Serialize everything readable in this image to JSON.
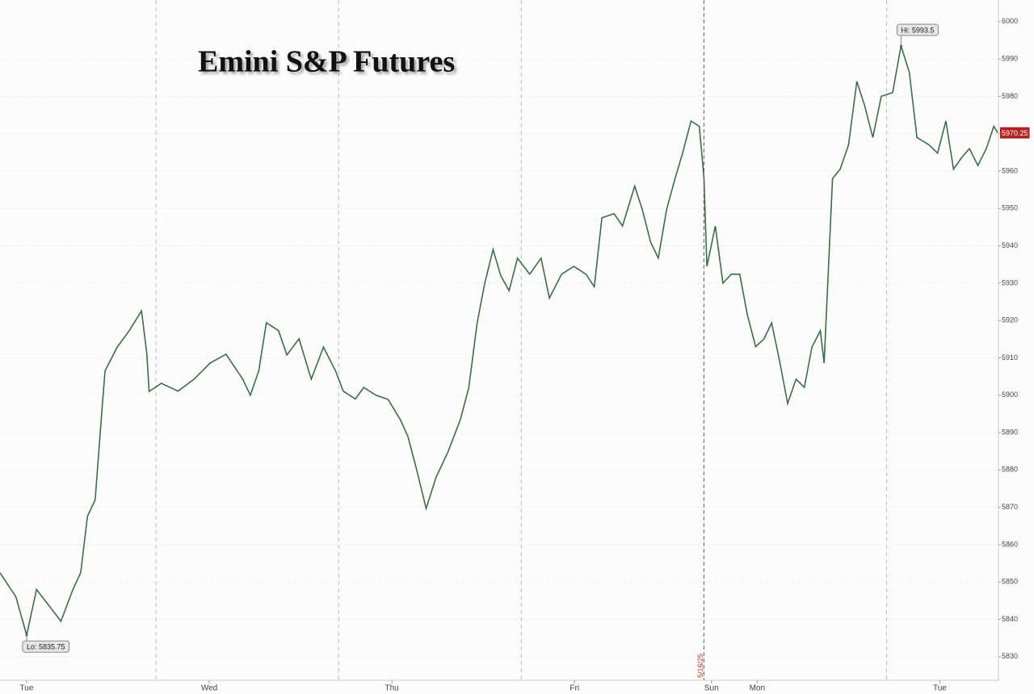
{
  "chart_data": {
    "type": "line",
    "title": "Emini S&P Futures",
    "x": [
      -3.5,
      -1.4,
      0,
      1.3,
      2.9,
      4.5,
      6.1,
      7.1,
      8.0,
      9.0,
      9.8,
      10.3,
      11.9,
      13.5,
      15.1,
      15.8,
      16.1,
      17.7,
      19.9,
      22.0,
      24.1,
      26.2,
      28.4,
      29.4,
      30.5,
      31.5,
      33.1,
      34.2,
      35.8,
      37.4,
      39.0,
      40.6,
      41.6,
      43.2,
      44.3,
      45.9,
      47.5,
      49.1,
      50.1,
      51.2,
      52.5,
      53.8,
      55.4,
      57.0,
      58.1,
      59.2,
      60.2,
      61.3,
      62.3,
      63.4,
      64.5,
      66.1,
      67.6,
      68.7,
      70.3,
      71.9,
      73.5,
      74.6,
      75.6,
      77.2,
      78.3,
      79.9,
      80.9,
      82.0,
      83.0,
      84.1,
      85.2,
      86.2,
      87.3,
      88.4,
      89.0,
      89.4,
      90.5,
      91.5,
      92.6,
      93.7,
      94.7,
      95.8,
      96.9,
      97.9,
      99.0,
      100.0,
      101.1,
      102.2,
      103.2,
      104.3,
      104.8,
      105.9,
      106.9,
      108.0,
      109.1,
      110.1,
      111.2,
      112.3,
      113.8,
      114.9,
      116.0,
      117.0,
      118.6,
      119.7,
      120.8,
      121.8,
      122.9,
      123.9,
      125.0,
      126.1,
      127.1,
      127.6
    ],
    "series": [
      {
        "color": "#3b6e46",
        "values": [
          5852.5,
          5846,
          5835.75,
          5848,
          5843.8,
          5839.5,
          5848.1,
          5852.5,
          5867.6,
          5872,
          5893.5,
          5906.5,
          5912.9,
          5917.3,
          5922.6,
          5911,
          5901,
          5903.2,
          5901.1,
          5904.3,
          5908.6,
          5911,
          5904.3,
          5900,
          5906.5,
          5919.4,
          5917.3,
          5910.8,
          5915.1,
          5904.3,
          5912.9,
          5906.5,
          5901.1,
          5899,
          5902.1,
          5900,
          5898.9,
          5893.5,
          5889,
          5880.5,
          5869.7,
          5878,
          5885,
          5893.5,
          5902,
          5919.4,
          5930,
          5939,
          5932,
          5928,
          5936.7,
          5932.4,
          5936.7,
          5926,
          5932.4,
          5934.5,
          5932.4,
          5929,
          5947.5,
          5948.6,
          5945.3,
          5956,
          5949.7,
          5941,
          5936.7,
          5949.7,
          5958,
          5964.8,
          5973.4,
          5972,
          5958.3,
          5934.5,
          5945.3,
          5930,
          5932.4,
          5932.4,
          5921.6,
          5913,
          5915.1,
          5919.4,
          5908.6,
          5897.8,
          5904.3,
          5902.1,
          5912.9,
          5917.3,
          5908.6,
          5958,
          5960.5,
          5967,
          5984,
          5977.7,
          5969,
          5980,
          5981,
          5993.5,
          5986.4,
          5969,
          5967,
          5964.8,
          5973.4,
          5960.5,
          5963.7,
          5966,
          5961.5,
          5966,
          5972,
          5970.25
        ]
      }
    ],
    "xlim": [
      -3.5,
      127.6
    ],
    "xticks": [
      {
        "value": 0,
        "label": "Tue"
      },
      {
        "value": 24,
        "label": "Wed"
      },
      {
        "value": 48,
        "label": "Thu"
      },
      {
        "value": 72,
        "label": "Fri"
      },
      {
        "value": 90,
        "label": "Sun"
      },
      {
        "value": 96,
        "label": "Mon"
      },
      {
        "value": 120,
        "label": "Tue"
      }
    ],
    "xgrid": [
      17,
      41,
      65,
      113
    ],
    "ylim": [
      5823.7,
      6005.8
    ],
    "yticks": [
      5830,
      5840,
      5850,
      5860,
      5870,
      5880,
      5890,
      5900,
      5910,
      5920,
      5930,
      5940,
      5950,
      5960,
      5970,
      5980,
      5990,
      6000
    ],
    "grid": true,
    "marker": {
      "x": 89.0,
      "label": "5/16/25",
      "color": "#c0392b"
    },
    "annotations": [
      {
        "x": 114.9,
        "value": 5993.5,
        "label": "Hi: 5993.5",
        "side": "top"
      },
      {
        "x": 0,
        "value": 5835.75,
        "label": "Lo: 5835.75",
        "side": "bottom"
      }
    ],
    "last": {
      "value": 5970.25,
      "color": "#b22222"
    }
  }
}
